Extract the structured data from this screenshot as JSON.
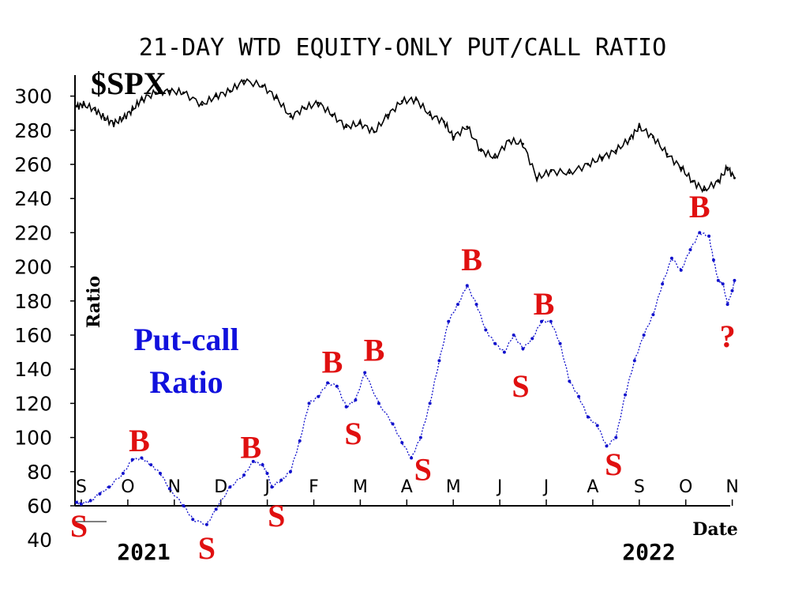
{
  "chart_data": {
    "type": "line",
    "title": "21-DAY WTD EQUITY-ONLY PUT/CALL RATIO",
    "ylabel": "Ratio",
    "xlabel": "Date",
    "ylim": [
      40,
      310
    ],
    "yticks": [
      "300",
      "280",
      "260",
      "240",
      "220",
      "200",
      "180",
      "160",
      "140",
      "120",
      "100",
      "80",
      "60",
      "40"
    ],
    "months": [
      "S",
      "O",
      "N",
      "D",
      "J",
      "F",
      "M",
      "A",
      "M",
      "J",
      "J",
      "A",
      "S",
      "O",
      "N"
    ],
    "years": [
      "2021",
      "2022"
    ],
    "annotations": {
      "spx_label": "$SPX",
      "ratio_label_line1": "Put-call",
      "ratio_label_line2": "Ratio",
      "question": "?"
    },
    "series": [
      {
        "name": "$SPX",
        "x": [
          0,
          0.15,
          0.4,
          0.6,
          0.8,
          1.0,
          1.2,
          1.4,
          1.7,
          2.0,
          2.3,
          2.7,
          3.0,
          3.3,
          3.6,
          4.0,
          4.3,
          4.6,
          4.9,
          5.2,
          5.5,
          5.8,
          6.1,
          6.4,
          6.7,
          7.0,
          7.3,
          7.6,
          7.9,
          8.1,
          8.4,
          8.7,
          9.0,
          9.3,
          9.6,
          9.9,
          10.2,
          10.6,
          11.0,
          11.3,
          11.6,
          11.9,
          12.1,
          12.4,
          12.7,
          13.0,
          13.25,
          13.5,
          13.8,
          14.0,
          14.15
        ],
        "y": [
          294,
          295,
          292,
          287,
          284,
          287,
          292,
          298,
          302,
          303,
          302,
          295,
          300,
          303,
          309,
          306,
          299,
          288,
          293,
          296,
          289,
          282,
          284,
          279,
          289,
          297,
          298,
          289,
          285,
          276,
          282,
          268,
          264,
          274,
          272,
          252,
          256,
          255,
          260,
          264,
          268,
          275,
          282,
          276,
          266,
          258,
          250,
          245,
          250,
          258,
          252
        ]
      },
      {
        "name": "Put-call Ratio",
        "x": [
          0,
          0.1,
          0.3,
          0.5,
          0.7,
          1.0,
          1.2,
          1.4,
          1.6,
          1.8,
          2.0,
          2.3,
          2.5,
          2.8,
          3.0,
          3.3,
          3.6,
          3.8,
          4.0,
          4.1,
          4.2,
          4.4,
          4.6,
          4.8,
          5.0,
          5.2,
          5.4,
          5.6,
          5.8,
          6.0,
          6.2,
          6.5,
          6.8,
          7.0,
          7.2,
          7.4,
          7.6,
          7.8,
          8.0,
          8.2,
          8.4,
          8.6,
          8.8,
          9.0,
          9.2,
          9.4,
          9.6,
          9.8,
          10.0,
          10.2,
          10.4,
          10.6,
          10.8,
          11.0,
          11.2,
          11.4,
          11.6,
          11.8,
          12.0,
          12.2,
          12.4,
          12.6,
          12.8,
          13.0,
          13.2,
          13.4,
          13.6,
          13.7,
          13.8,
          13.9,
          14.0,
          14.1,
          14.15
        ],
        "y": [
          62,
          61,
          63,
          67,
          71,
          79,
          87,
          88,
          84,
          79,
          70,
          60,
          52,
          49,
          58,
          71,
          78,
          86,
          84,
          79,
          71,
          75,
          80,
          98,
          120,
          124,
          132,
          130,
          118,
          122,
          138,
          120,
          108,
          97,
          88,
          100,
          120,
          145,
          168,
          178,
          189,
          178,
          163,
          155,
          150,
          160,
          152,
          158,
          168,
          168,
          155,
          133,
          124,
          112,
          107,
          95,
          100,
          125,
          145,
          160,
          172,
          190,
          205,
          198,
          210,
          220,
          218,
          204,
          192,
          190,
          178,
          186,
          192
        ]
      }
    ],
    "signals": [
      {
        "label": "B",
        "x": 1.35,
        "y": 92
      },
      {
        "label": "B",
        "x": 3.75,
        "y": 88
      },
      {
        "label": "B",
        "x": 5.5,
        "y": 138
      },
      {
        "label": "B",
        "x": 6.4,
        "y": 145
      },
      {
        "label": "B",
        "x": 8.5,
        "y": 198
      },
      {
        "label": "B",
        "x": 10.05,
        "y": 172
      },
      {
        "label": "B",
        "x": 13.4,
        "y": 229
      },
      {
        "label": "S",
        "x": 0.05,
        "y": 42
      },
      {
        "label": "S",
        "x": 2.8,
        "y": 29
      },
      {
        "label": "S",
        "x": 4.3,
        "y": 48
      },
      {
        "label": "S",
        "x": 5.95,
        "y": 96
      },
      {
        "label": "S",
        "x": 7.45,
        "y": 75
      },
      {
        "label": "S",
        "x": 9.55,
        "y": 124
      },
      {
        "label": "S",
        "x": 11.55,
        "y": 78
      },
      {
        "label": "?",
        "x": 14.0,
        "y": 153
      }
    ]
  }
}
